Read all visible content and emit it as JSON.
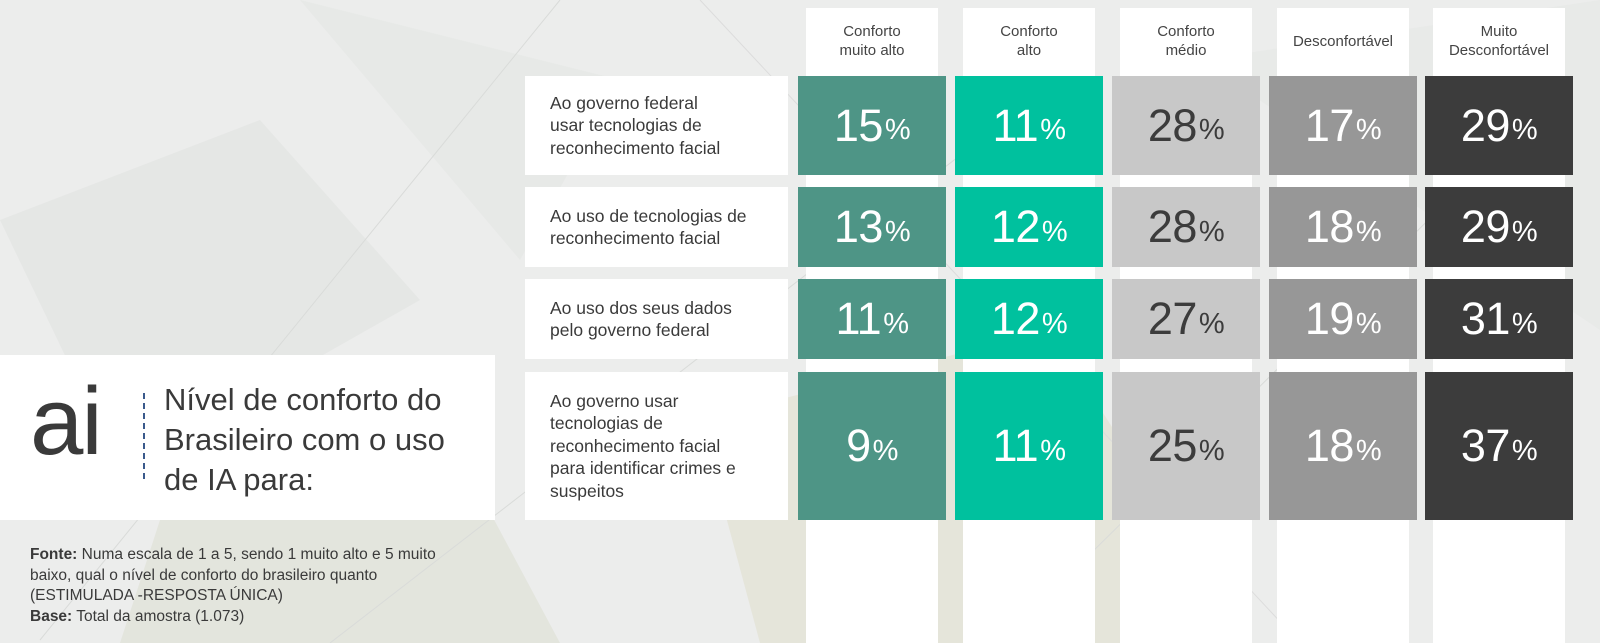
{
  "title": "Nível de conforto do Brasileiro com o uso de IA para:",
  "logo_text": "ai",
  "footnote": {
    "fonte_label": "Fonte:",
    "fonte_text": " Numa escala de 1 a 5, sendo 1 muito alto e 5 muito baixo, qual o nível de conforto do brasileiro quanto (ESTIMULADA -RESPOSTA ÚNICA)",
    "base_label": "Base:",
    "base_text": " Total da amostra (1.073)"
  },
  "colors": {
    "Conforto muito alto": "#4e9586",
    "Conforto alto": "#00c19e",
    "Conforto médio": "#c8c8c8",
    "Desconfortável": "#979797",
    "Muito Desconfortável": "#3c3c3c"
  },
  "text_colors": {
    "Conforto muito alto": "#ffffff",
    "Conforto alto": "#ffffff",
    "Conforto médio": "#3c3c3c",
    "Desconfortável": "#ffffff",
    "Muito Desconfortável": "#ffffff"
  },
  "chart_data": {
    "type": "table",
    "unit": "%",
    "columns": [
      "Conforto muito alto",
      "Conforto alto",
      "Conforto médio",
      "Desconfortável",
      "Muito Desconfortável"
    ],
    "column_labels": [
      "Conforto\nmuito alto",
      "Conforto\nalto",
      "Conforto\nmédio",
      "Desconfortável",
      "Muito\nDesconfortável"
    ],
    "rows": [
      {
        "label": "Ao governo federal\nusar tecnologias de\nreconhecimento facial",
        "values": [
          15,
          11,
          28,
          17,
          29
        ]
      },
      {
        "label": "Ao uso de tecnologias de\nreconhecimento facial",
        "values": [
          13,
          12,
          28,
          18,
          29
        ]
      },
      {
        "label": "Ao uso dos seus dados\npelo governo federal",
        "values": [
          11,
          12,
          27,
          19,
          31
        ]
      },
      {
        "label": "Ao governo usar\ntecnologias de\nreconhecimento facial\npara identificar crimes e\nsuspeitos",
        "values": [
          9,
          11,
          25,
          18,
          37
        ]
      }
    ]
  }
}
